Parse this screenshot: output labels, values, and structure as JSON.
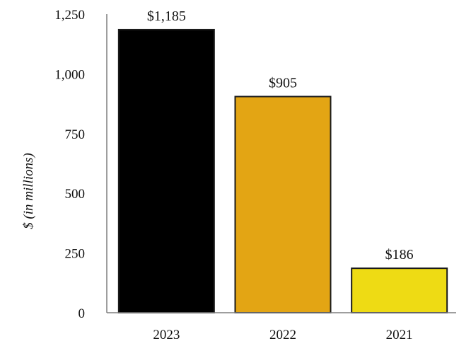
{
  "chart_data": {
    "type": "bar",
    "categories": [
      "2023",
      "2022",
      "2021"
    ],
    "values": [
      1185,
      905,
      186
    ],
    "data_labels": [
      "$1,185",
      "$905",
      "$186"
    ],
    "bar_colors": [
      "#000000",
      "#E3A514",
      "#EEDB14"
    ],
    "ylabel": "$ (in millions)",
    "xlabel": "",
    "ylim": [
      0,
      1250
    ],
    "yticks": [
      0,
      250,
      500,
      750,
      1000,
      1250
    ],
    "ytick_labels": [
      "0",
      "250",
      "500",
      "750",
      "1,000",
      "1,250"
    ],
    "grid": false,
    "legend": "none"
  }
}
